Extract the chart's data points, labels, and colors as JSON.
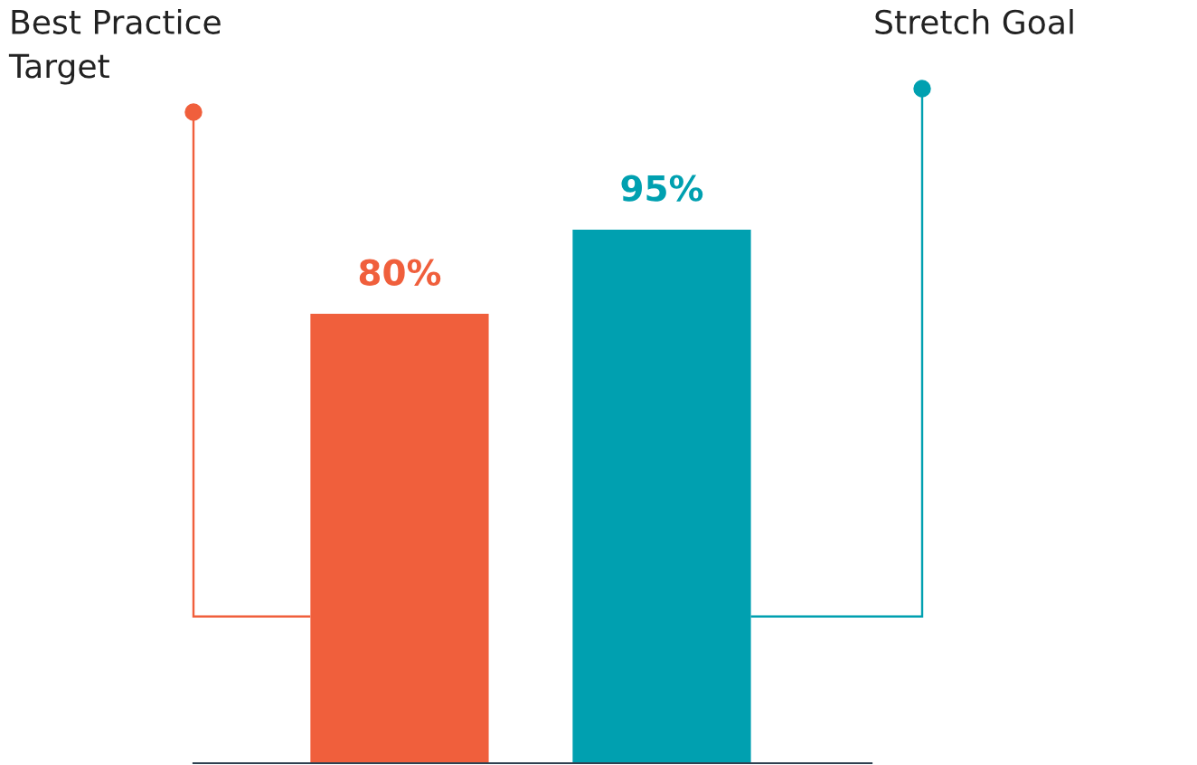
{
  "chart_data": {
    "type": "bar",
    "categories": [
      "Best Practice\nTarget",
      "Stretch Goal"
    ],
    "values": [
      80,
      95
    ],
    "colors": [
      "#f05f3c",
      "#00a0b0"
    ],
    "value_labels": [
      "80%",
      "95%"
    ]
  }
}
